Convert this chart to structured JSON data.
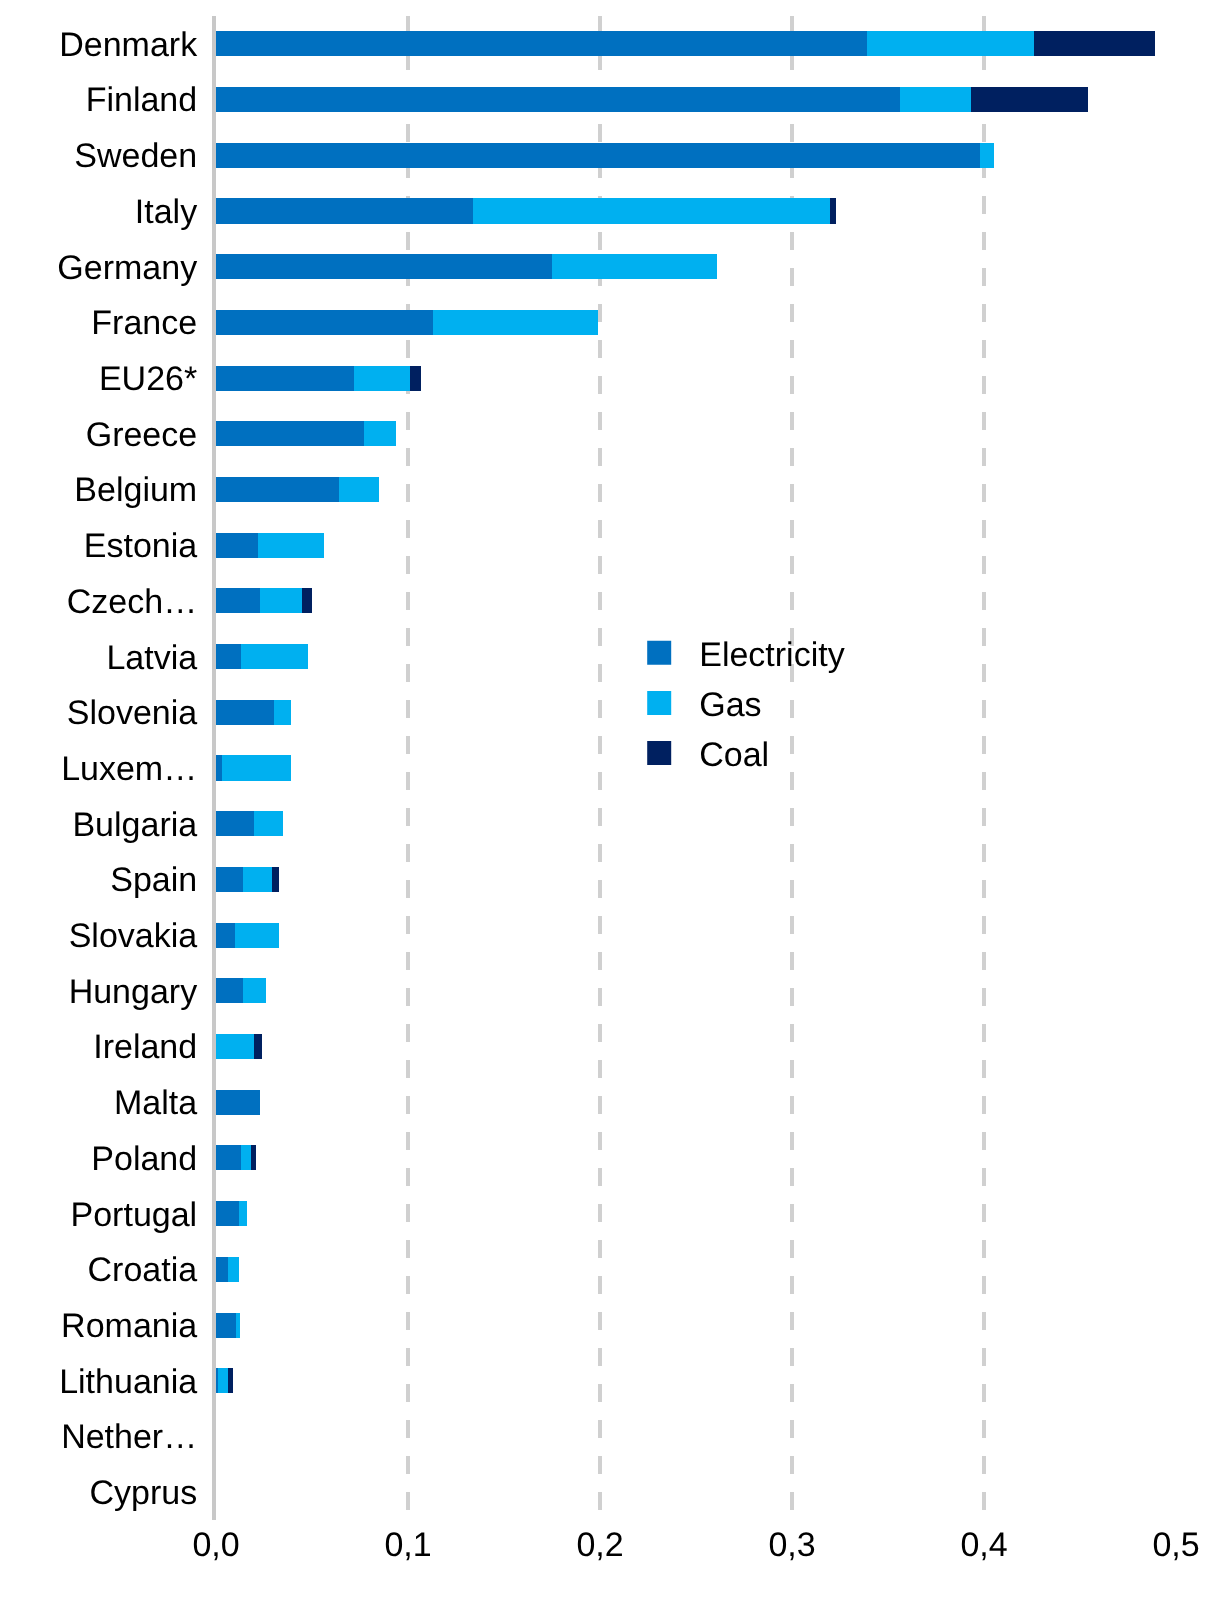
{
  "chart_data": {
    "type": "bar",
    "orientation": "horizontal",
    "stacked": true,
    "categories": [
      "Denmark",
      "Finland",
      "Sweden",
      "Italy",
      "Germany",
      "France",
      "EU26*",
      "Greece",
      "Belgium",
      "Estonia",
      "Czech…",
      "Latvia",
      "Slovenia",
      "Luxem…",
      "Bulgaria",
      "Spain",
      "Slovakia",
      "Hungary",
      "Ireland",
      "Malta",
      "Poland",
      "Portugal",
      "Croatia",
      "Romania",
      "Lithuania",
      "Nether…",
      "Cyprus"
    ],
    "series": [
      {
        "name": "Electricity",
        "color": "#0070c0",
        "values": [
          0.339,
          0.356,
          0.398,
          0.134,
          0.175,
          0.113,
          0.072,
          0.077,
          0.064,
          0.022,
          0.023,
          0.013,
          0.03,
          0.003,
          0.02,
          0.014,
          0.01,
          0.014,
          0,
          0.023,
          0.013,
          0.012,
          0.006,
          0.011,
          0.001,
          0,
          0
        ]
      },
      {
        "name": "Gas",
        "color": "#00b0f0",
        "values": [
          0.087,
          0.037,
          0.007,
          0.186,
          0.086,
          0.086,
          0.029,
          0.017,
          0.021,
          0.034,
          0.022,
          0.035,
          0.009,
          0.036,
          0.015,
          0.015,
          0.023,
          0.012,
          0.02,
          0,
          0.005,
          0.004,
          0.006,
          0.001,
          0.005,
          0,
          0
        ]
      },
      {
        "name": "Coal",
        "color": "#002060",
        "values": [
          0.063,
          0.061,
          0,
          0.003,
          0,
          0,
          0.006,
          0,
          0,
          0,
          0.005,
          0,
          0,
          0,
          0,
          0.004,
          0,
          0,
          0.004,
          0,
          0.003,
          0,
          0,
          0,
          0.003,
          0,
          0
        ]
      }
    ],
    "xlim": [
      0,
      0.5
    ],
    "xticks": [
      {
        "value": 0,
        "label": "0,0"
      },
      {
        "value": 0.1,
        "label": "0,1"
      },
      {
        "value": 0.2,
        "label": "0,2"
      },
      {
        "value": 0.3,
        "label": "0,3"
      },
      {
        "value": 0.4,
        "label": "0,4"
      },
      {
        "value": 0.5,
        "label": "0,5"
      }
    ],
    "grid": "x",
    "legend": "right"
  }
}
